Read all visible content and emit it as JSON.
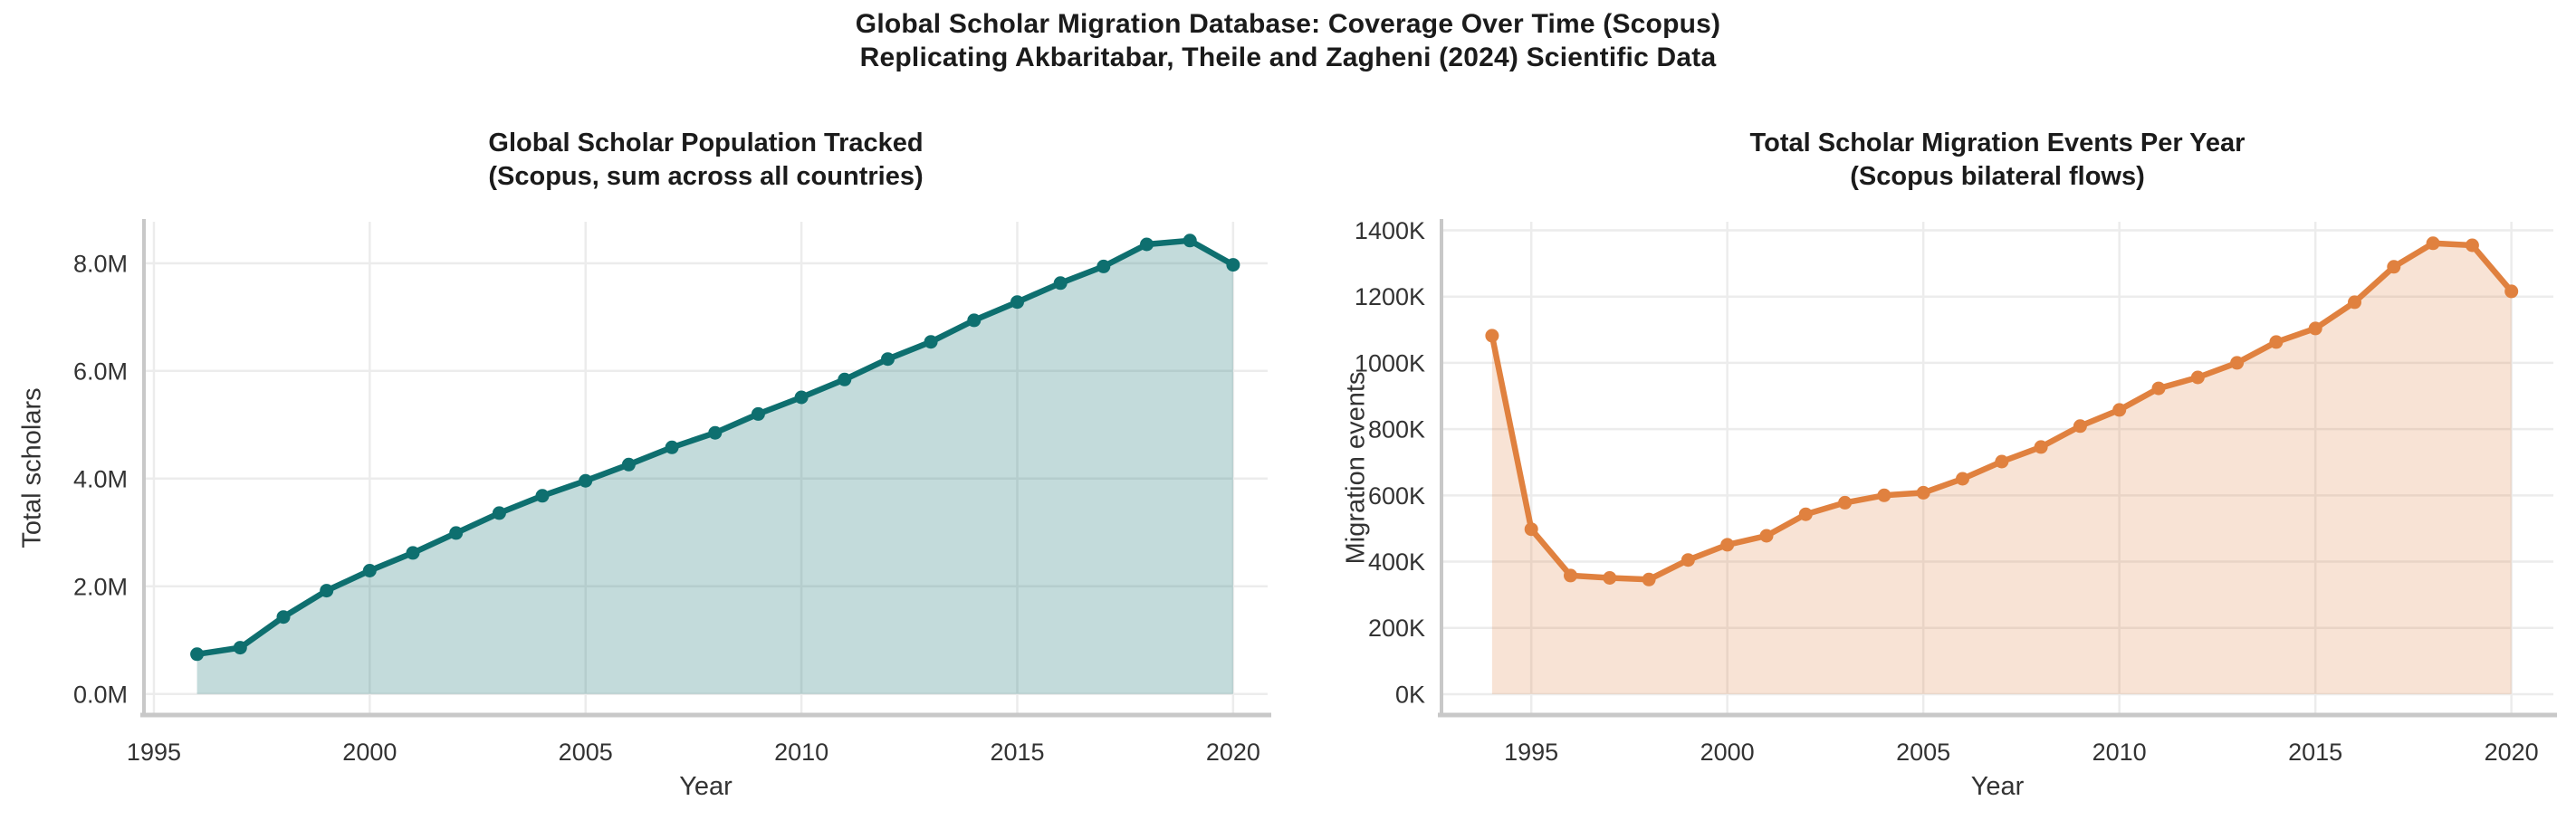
{
  "page": {
    "title_line1": "Global Scholar Migration Database: Coverage Over Time (Scopus)",
    "title_line2": "Replicating Akbaritabar, Theile and Zagheni (2024) Scientific Data"
  },
  "chart_data": [
    {
      "type": "area",
      "title": "Global Scholar Population Tracked",
      "subtitle": "(Scopus, sum across all countries)",
      "xlabel": "Year",
      "ylabel": "Total scholars",
      "y_unit": "millions of scholars",
      "grid": true,
      "legend": "none",
      "line_color": "#0e6f6f",
      "fill_color": "rgba(14,111,111,0.25)",
      "x": [
        1996,
        1997,
        1998,
        1999,
        2000,
        2001,
        2002,
        2003,
        2004,
        2005,
        2006,
        2007,
        2008,
        2009,
        2010,
        2011,
        2012,
        2013,
        2014,
        2015,
        2016,
        2017,
        2018,
        2019,
        2020
      ],
      "y": [
        0.74,
        0.86,
        1.43,
        1.92,
        2.29,
        2.62,
        2.99,
        3.36,
        3.68,
        3.96,
        4.26,
        4.58,
        4.85,
        5.2,
        5.51,
        5.84,
        6.22,
        6.54,
        6.94,
        7.28,
        7.63,
        7.94,
        8.35,
        8.42,
        7.97
      ],
      "xlim": [
        1994.77,
        2020.8
      ],
      "ylim": [
        -0.39,
        8.77
      ],
      "x_ticks": [
        {
          "v": 1995,
          "label": "1995"
        },
        {
          "v": 2000,
          "label": "2000"
        },
        {
          "v": 2005,
          "label": "2005"
        },
        {
          "v": 2010,
          "label": "2010"
        },
        {
          "v": 2015,
          "label": "2015"
        },
        {
          "v": 2020,
          "label": "2020"
        }
      ],
      "y_ticks": [
        {
          "v": 0,
          "label": "0.0M"
        },
        {
          "v": 2,
          "label": "2.0M"
        },
        {
          "v": 4,
          "label": "4.0M"
        },
        {
          "v": 6,
          "label": "6.0M"
        },
        {
          "v": 8,
          "label": "8.0M"
        }
      ]
    },
    {
      "type": "area",
      "title": "Total Scholar Migration Events Per Year",
      "subtitle": "(Scopus bilateral flows)",
      "xlabel": "Year",
      "ylabel": "Migration events",
      "y_unit": "thousands of migration events",
      "grid": true,
      "legend": "none",
      "line_color": "#e0813f",
      "fill_color": "rgba(224,129,63,0.22)",
      "x": [
        1994,
        1995,
        1996,
        1997,
        1998,
        1999,
        2000,
        2001,
        2002,
        2003,
        2004,
        2005,
        2006,
        2007,
        2008,
        2009,
        2010,
        2011,
        2012,
        2013,
        2014,
        2015,
        2016,
        2017,
        2018,
        2019,
        2020
      ],
      "y": [
        1082,
        498,
        358,
        351,
        346,
        405,
        451,
        478,
        543,
        578,
        600,
        608,
        650,
        702,
        746,
        809,
        858,
        923,
        956,
        1000,
        1063,
        1104,
        1183,
        1290,
        1361,
        1355,
        1216
      ],
      "xlim": [
        1992.71,
        2021.07
      ],
      "ylim": [
        -63,
        1426
      ],
      "x_ticks": [
        {
          "v": 1995,
          "label": "1995"
        },
        {
          "v": 2000,
          "label": "2000"
        },
        {
          "v": 2005,
          "label": "2005"
        },
        {
          "v": 2010,
          "label": "2010"
        },
        {
          "v": 2015,
          "label": "2015"
        },
        {
          "v": 2020,
          "label": "2020"
        }
      ],
      "y_ticks": [
        {
          "v": 0,
          "label": "0K"
        },
        {
          "v": 200,
          "label": "200K"
        },
        {
          "v": 400,
          "label": "400K"
        },
        {
          "v": 600,
          "label": "600K"
        },
        {
          "v": 800,
          "label": "800K"
        },
        {
          "v": 1000,
          "label": "1000K"
        },
        {
          "v": 1200,
          "label": "1200K"
        },
        {
          "v": 1400,
          "label": "1400K"
        }
      ]
    }
  ]
}
